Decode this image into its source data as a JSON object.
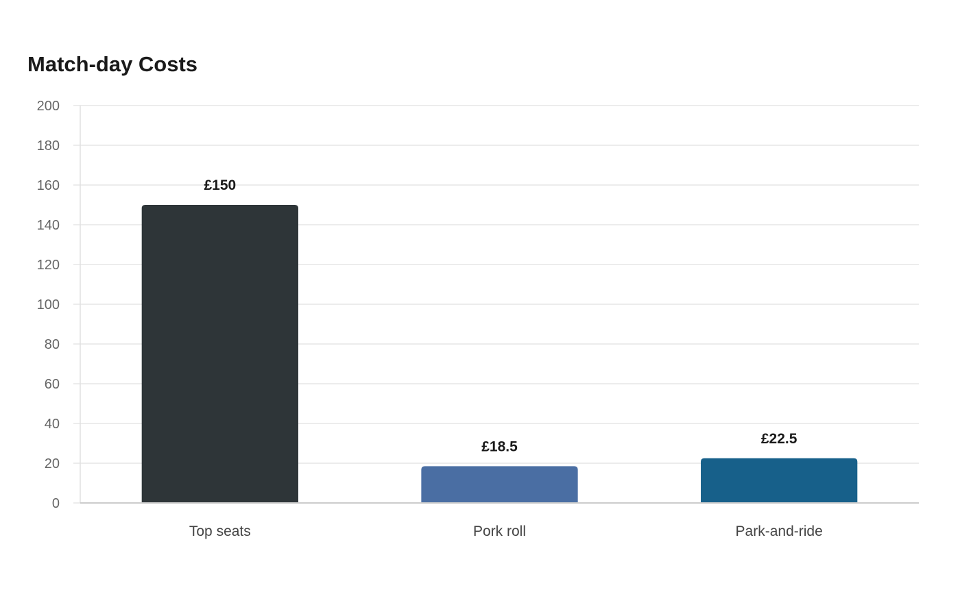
{
  "chart_data": {
    "type": "bar",
    "title": "Match-day Costs",
    "xlabel": "",
    "ylabel": "",
    "categories": [
      "Top seats",
      "Pork roll",
      "Park-and-ride"
    ],
    "values": [
      150,
      18.5,
      22.5
    ],
    "data_labels": [
      "£150",
      "£18.5",
      "£22.5"
    ],
    "colors": [
      "#2e3538",
      "#4a6ea3",
      "#17608a"
    ],
    "ylim": [
      0,
      200
    ],
    "yticks": [
      0,
      20,
      40,
      60,
      80,
      100,
      120,
      140,
      160,
      180,
      200
    ],
    "grid": true,
    "legend": "none"
  }
}
